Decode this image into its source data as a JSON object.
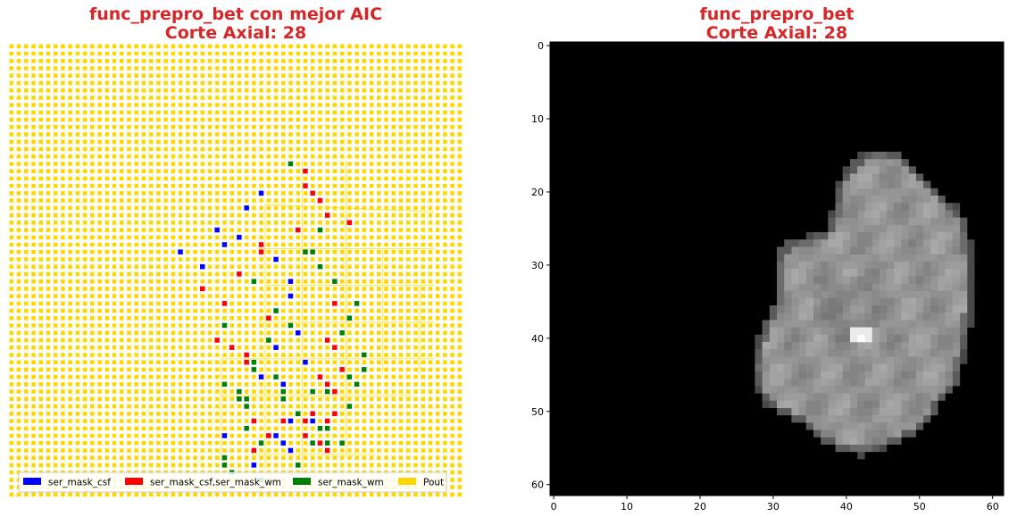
{
  "left_panel": {
    "title_line1": "func_prepro_bet con mejor AIC",
    "title_line2": "Corte Axial: 28",
    "legend": [
      {
        "label": "ser_mask_csf",
        "color": "#0000ff"
      },
      {
        "label": "ser_mask_csf,ser_mask_wm",
        "color": "#ff0000"
      },
      {
        "label": "ser_mask_wm",
        "color": "#008000"
      },
      {
        "label": "Pout",
        "color": "#ffd700"
      }
    ]
  },
  "right_panel": {
    "title_line1": "func_prepro_bet",
    "title_line2": "Corte Axial: 28"
  },
  "chart_data": [
    {
      "type": "heatmap",
      "title": "func_prepro_bet con mejor AIC\nCorte Axial: 28",
      "grid_size": 62,
      "background_class": "Pout",
      "grid": "off",
      "axes_visible": false,
      "legend_position": "bottom",
      "series": [
        {
          "name": "ser_mask_csf",
          "color": "#0000ff",
          "points": [
            [
              34,
              20
            ],
            [
              32,
              22
            ],
            [
              28,
              25
            ],
            [
              31,
              26
            ],
            [
              29,
              27
            ],
            [
              23,
              28
            ],
            [
              26,
              30
            ],
            [
              38,
              32
            ],
            [
              36,
              29
            ],
            [
              38,
              34
            ],
            [
              39,
              39
            ],
            [
              37,
              46
            ],
            [
              33,
              57
            ],
            [
              36,
              53
            ],
            [
              38,
              55
            ],
            [
              37,
              54
            ],
            [
              34,
              45
            ],
            [
              41,
              51
            ],
            [
              29,
              53
            ],
            [
              38,
              51
            ],
            [
              40,
              43
            ],
            [
              36,
              41
            ]
          ]
        },
        {
          "name": "ser_mask_csf,ser_mask_wm",
          "color": "#ff0000",
          "points": [
            [
              40,
              17
            ],
            [
              40,
              19
            ],
            [
              41,
              20
            ],
            [
              42,
              21
            ],
            [
              43,
              23
            ],
            [
              39,
              25
            ],
            [
              34,
              27
            ],
            [
              34,
              28
            ],
            [
              31,
              31
            ],
            [
              29,
              35
            ],
            [
              28,
              40
            ],
            [
              30,
              41
            ],
            [
              35,
              37
            ],
            [
              32,
              42
            ],
            [
              32,
              43
            ],
            [
              33,
              51
            ],
            [
              35,
              53
            ],
            [
              46,
              24
            ],
            [
              44,
              35
            ],
            [
              43,
              40
            ],
            [
              41,
              50
            ],
            [
              43,
              51
            ],
            [
              44,
              50
            ],
            [
              42,
              45
            ],
            [
              43,
              46
            ],
            [
              44,
              41
            ],
            [
              40,
              51
            ],
            [
              42,
              54
            ],
            [
              37,
              51
            ],
            [
              33,
              55
            ],
            [
              43,
              55
            ],
            [
              45,
              44
            ],
            [
              44,
              47
            ],
            [
              26,
              33
            ],
            [
              40,
              53
            ]
          ]
        },
        {
          "name": "ser_mask_wm",
          "color": "#008000",
          "points": [
            [
              38,
              16
            ],
            [
              40,
              28
            ],
            [
              41,
              28
            ],
            [
              42,
              25
            ],
            [
              42,
              30
            ],
            [
              33,
              32
            ],
            [
              36,
              36
            ],
            [
              38,
              38
            ],
            [
              35,
              40
            ],
            [
              33,
              43
            ],
            [
              33,
              44
            ],
            [
              29,
              46
            ],
            [
              31,
              47
            ],
            [
              32,
              49
            ],
            [
              32,
              52
            ],
            [
              34,
              54
            ],
            [
              29,
              56
            ],
            [
              29,
              57
            ],
            [
              30,
              58
            ],
            [
              34,
              59
            ],
            [
              39,
              57
            ],
            [
              41,
              54
            ],
            [
              42,
              52
            ],
            [
              43,
              52
            ],
            [
              43,
              47
            ],
            [
              43,
              54
            ],
            [
              45,
              54
            ],
            [
              46,
              45
            ],
            [
              47,
              46
            ],
            [
              46,
              49
            ],
            [
              48,
              42
            ],
            [
              48,
              44
            ],
            [
              41,
              47
            ],
            [
              37,
              48
            ],
            [
              39,
              50
            ],
            [
              37,
              47
            ],
            [
              36,
              45
            ],
            [
              32,
              48
            ],
            [
              31,
              48
            ],
            [
              47,
              35
            ],
            [
              46,
              37
            ],
            [
              45,
              39
            ],
            [
              44,
              32
            ],
            [
              29,
              38
            ]
          ]
        }
      ]
    },
    {
      "type": "heatmap",
      "title": "func_prepro_bet\nCorte Axial: 28",
      "colormap": "gray",
      "grid_size": 62,
      "xlim": [
        -0.5,
        61.5
      ],
      "ylim": [
        61.5,
        -0.5
      ],
      "x_ticks": [
        0,
        10,
        20,
        30,
        40,
        50,
        60
      ],
      "y_ticks": [
        0,
        10,
        20,
        30,
        40,
        50,
        60
      ],
      "grid": "off"
    }
  ]
}
